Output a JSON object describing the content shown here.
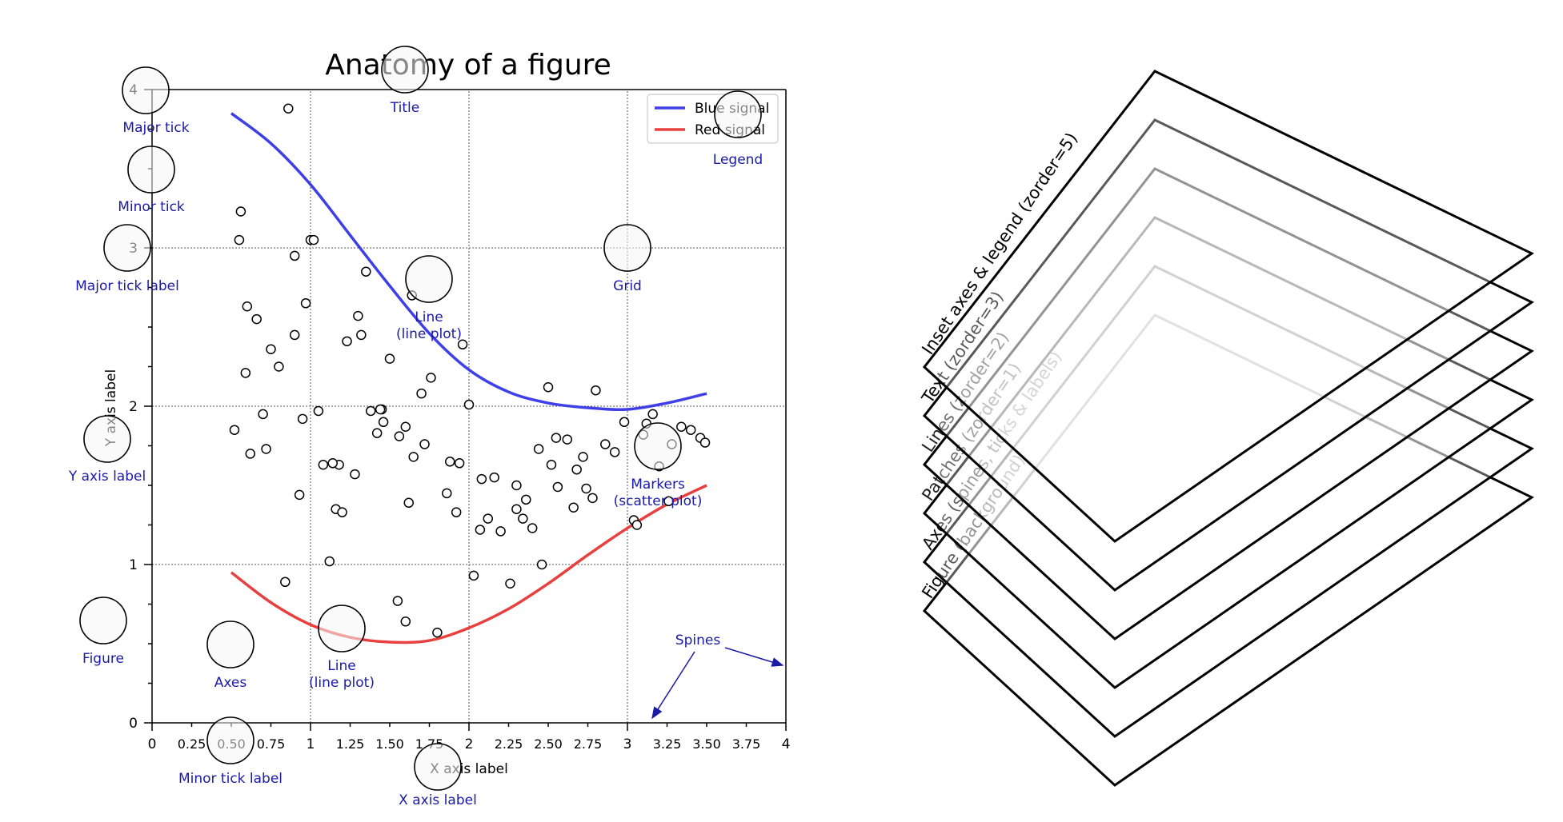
{
  "title": "Anatomy of a figure",
  "x_axis_label": "X axis label",
  "y_axis_label": "Y axis label",
  "legend": {
    "entries": [
      {
        "label": "Blue signal",
        "color": "#3f3fe8"
      },
      {
        "label": "Red signal",
        "color": "#e8403f"
      }
    ]
  },
  "annotations": {
    "major_tick": "Major tick",
    "minor_tick": "Minor tick",
    "major_tick_label": "Major tick label",
    "title": "Title",
    "legend": "Legend",
    "grid": "Grid",
    "line_blue": [
      "Line",
      "(line plot)"
    ],
    "line_red": [
      "Line",
      "(line plot)"
    ],
    "y_axis_label": "Y axis label",
    "markers": [
      "Markers",
      "(scatter plot)"
    ],
    "figure": "Figure",
    "axes": "Axes",
    "spines": "Spines",
    "minor_tick_label": "Minor tick label",
    "x_axis_label": "X axis label"
  },
  "annotation_color": "#1a1aa6",
  "layers": [
    {
      "label": "Figure (background)",
      "color": "#000000",
      "label_color": "#000000"
    },
    {
      "label": "Axes (spines, ticks & labels)",
      "color": "#000000",
      "label_color": "#111111"
    },
    {
      "label": "Patches (zorder=1)",
      "color": "#000000",
      "label_color": "#222222"
    },
    {
      "label": "Lines (zorder=2)",
      "color": "#000000",
      "label_color": "#222222"
    },
    {
      "label": "Text (zorder=3)",
      "color": "#000000",
      "label_color": "#000000"
    },
    {
      "label": "Inset axes & legend (zorder=5)",
      "color": "#000000",
      "label_color": "#000000"
    }
  ],
  "chart_data": {
    "type": "scatter",
    "xlim": [
      0,
      4
    ],
    "ylim": [
      0,
      4
    ],
    "x_major_ticks": [
      0,
      1,
      2,
      3,
      4
    ],
    "x_minor_ticks": [
      0.25,
      0.5,
      0.75,
      1.25,
      1.5,
      1.75,
      2.25,
      2.5,
      2.75,
      3.25,
      3.5,
      3.75
    ],
    "x_major_tick_labels": [
      "0",
      "1",
      "2",
      "3",
      "4"
    ],
    "x_minor_tick_labels": [
      "0.25",
      "0.50",
      "0.75",
      "1.25",
      "1.50",
      "1.75",
      "2.25",
      "2.50",
      "2.75",
      "3.25",
      "3.50",
      "3.75"
    ],
    "y_major_ticks": [
      0,
      1,
      2,
      3,
      4
    ],
    "y_major_tick_labels": [
      "0",
      "1",
      "2",
      "3",
      "4"
    ],
    "y_minor_ticks": [
      0.25,
      0.5,
      0.75,
      1.25,
      1.5,
      1.75,
      2.25,
      2.5,
      2.75,
      3.25,
      3.5,
      3.75
    ],
    "grid": true,
    "legend_position": "top-right",
    "series": [
      {
        "name": "Blue signal",
        "type": "line",
        "color": "#3f3fe8",
        "x": [
          0.5,
          0.75,
          1.0,
          1.25,
          1.5,
          1.75,
          2.0,
          2.25,
          2.5,
          2.75,
          3.0,
          3.25,
          3.5
        ],
        "y": [
          3.85,
          3.66,
          3.4,
          3.08,
          2.76,
          2.46,
          2.23,
          2.09,
          2.02,
          1.99,
          1.98,
          2.02,
          2.08
        ]
      },
      {
        "name": "Red signal",
        "type": "line",
        "color": "#e8403f",
        "x": [
          0.5,
          0.75,
          1.0,
          1.25,
          1.5,
          1.75,
          2.0,
          2.25,
          2.5,
          2.75,
          3.0,
          3.25,
          3.5
        ],
        "y": [
          0.95,
          0.76,
          0.62,
          0.54,
          0.51,
          0.52,
          0.6,
          0.72,
          0.88,
          1.06,
          1.23,
          1.38,
          1.5
        ]
      },
      {
        "name": "",
        "type": "scatter",
        "x": [
          0.52,
          0.55,
          0.59,
          0.62,
          0.66,
          0.72,
          0.75,
          0.8,
          0.86,
          0.9,
          0.93,
          0.97,
          1.0,
          1.05,
          1.08,
          1.12,
          1.16,
          1.2,
          1.23,
          1.28,
          1.32,
          1.35,
          1.38,
          1.42,
          1.46,
          1.5,
          1.55,
          1.6,
          1.62,
          1.65,
          1.7,
          1.76,
          1.8,
          1.86,
          1.92,
          1.96,
          2.03,
          2.07,
          2.12,
          2.16,
          2.2,
          2.26,
          2.3,
          2.36,
          2.4,
          2.46,
          2.5,
          2.55,
          2.62,
          2.66,
          2.72,
          2.8,
          2.86,
          2.92,
          2.98,
          3.04,
          3.1,
          3.16,
          3.2,
          3.28,
          3.34,
          3.4,
          3.46,
          3.49,
          0.84,
          0.95,
          1.3,
          1.45,
          1.6,
          1.72,
          2.0,
          2.3,
          2.52,
          2.68,
          3.06,
          3.26,
          0.56,
          0.6,
          0.9,
          1.02,
          1.18,
          1.44,
          1.56,
          1.88,
          2.08,
          2.34,
          2.56,
          2.78,
          3.12,
          0.7,
          1.14,
          1.64,
          1.94,
          2.44,
          2.74
        ],
        "y": [
          1.85,
          3.05,
          2.21,
          1.7,
          2.55,
          1.73,
          2.36,
          2.25,
          3.88,
          2.45,
          1.44,
          2.65,
          3.05,
          1.97,
          1.63,
          1.02,
          1.35,
          1.33,
          2.41,
          1.57,
          2.45,
          2.85,
          1.97,
          1.83,
          1.9,
          2.3,
          0.77,
          0.64,
          1.39,
          1.68,
          2.08,
          2.18,
          0.57,
          1.45,
          1.33,
          2.39,
          0.93,
          1.22,
          1.29,
          1.55,
          1.21,
          0.88,
          1.5,
          1.41,
          1.23,
          1.0,
          2.12,
          1.8,
          1.79,
          1.36,
          1.68,
          2.1,
          1.76,
          1.71,
          1.9,
          1.28,
          1.82,
          1.95,
          1.62,
          1.76,
          1.87,
          1.85,
          1.8,
          1.77,
          0.89,
          1.92,
          2.57,
          1.98,
          1.87,
          1.76,
          2.01,
          1.35,
          1.63,
          1.6,
          1.25,
          1.4,
          3.23,
          2.63,
          2.95,
          3.05,
          1.63,
          1.98,
          1.81,
          1.65,
          1.54,
          1.29,
          1.49,
          1.42,
          1.89,
          1.95,
          1.64,
          2.7,
          1.64,
          1.73,
          1.48
        ]
      }
    ]
  }
}
